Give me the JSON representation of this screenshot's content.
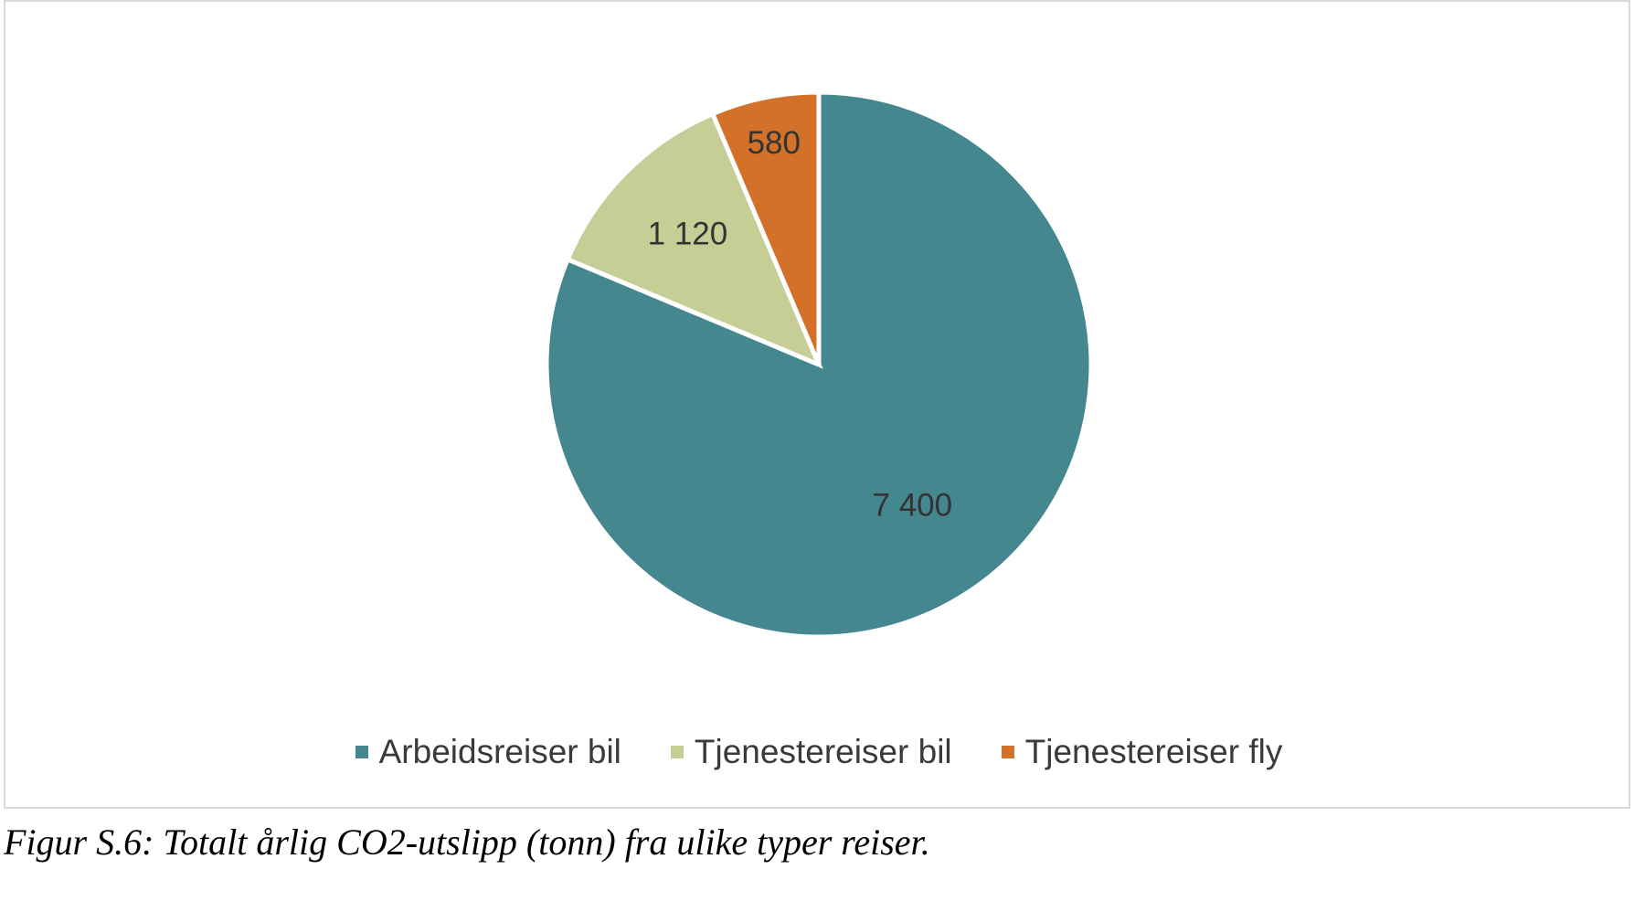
{
  "chart_data": {
    "type": "pie",
    "categories": [
      "Arbeidsreiser bil",
      "Tjenestereiser bil",
      "Tjenestereiser fly"
    ],
    "values": [
      7400,
      1120,
      580
    ],
    "data_labels": [
      "7 400",
      "1 120",
      "580"
    ],
    "colors": [
      "#44878e",
      "#c6cd95",
      "#d3712a"
    ],
    "label_color": "#333333",
    "start_angle_deg": 0,
    "direction": "clockwise",
    "legend_position": "bottom",
    "slice_border_color": "#ffffff"
  },
  "caption": "Figur S.6: Totalt årlig CO2-utslipp (tonn) fra ulike typer reiser."
}
